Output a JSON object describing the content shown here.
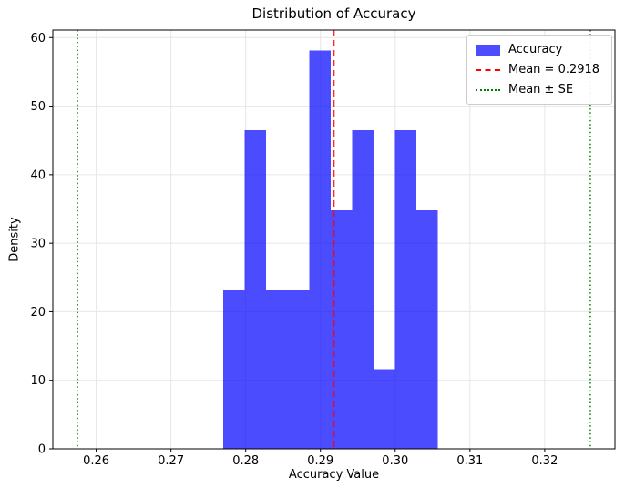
{
  "figure": {
    "title": "Distribution of Accuracy",
    "xlabel": "Accuracy Value",
    "ylabel": "Density"
  },
  "chart_data": {
    "type": "bar",
    "subtype": "histogram",
    "title": "Distribution of Accuracy",
    "xlabel": "Accuracy Value",
    "ylabel": "Density",
    "bin_edges": [
      0.277,
      0.279871,
      0.282742,
      0.285613,
      0.288484,
      0.291355,
      0.294226,
      0.297097,
      0.299968,
      0.302839,
      0.30571
    ],
    "densities": [
      23.2,
      46.5,
      23.2,
      23.2,
      58.1,
      34.8,
      46.5,
      11.6,
      46.5,
      34.8
    ],
    "counts": [
      2,
      4,
      2,
      2,
      5,
      3,
      4,
      1,
      4,
      3
    ],
    "mean": 0.2918,
    "se": 0.0343,
    "mean_minus_se": 0.2575,
    "mean_plus_se": 0.3261,
    "x_ticks": [
      0.26,
      0.27,
      0.28,
      0.29,
      0.3,
      0.31,
      0.32
    ],
    "x_tick_labels": [
      "0.26",
      "0.27",
      "0.28",
      "0.29",
      "0.30",
      "0.31",
      "0.32"
    ],
    "y_ticks": [
      0,
      10,
      20,
      30,
      40,
      50,
      60
    ],
    "y_tick_labels": [
      "0",
      "10",
      "20",
      "30",
      "40",
      "50",
      "60"
    ],
    "xlim": [
      0.2542,
      0.3294
    ],
    "ylim": [
      0,
      61.1
    ],
    "grid": true,
    "legend_position": "upper right",
    "colors": {
      "bar": "#0000FF",
      "bar_alpha": 0.7,
      "bar_effective": "#4D4DFF",
      "mean_line": "#FF0000",
      "se_line": "#008000",
      "grid": "#E6E6E6",
      "spine": "#000000",
      "text": "#000000"
    }
  },
  "legend": {
    "items": [
      {
        "label": "Accuracy",
        "type": "patch",
        "color": "#4D4DFF"
      },
      {
        "label": "Mean = 0.2918",
        "type": "dashed-line",
        "color": "#FF0000"
      },
      {
        "label": "Mean ± SE",
        "type": "dotted-line",
        "color": "#008000"
      }
    ]
  }
}
